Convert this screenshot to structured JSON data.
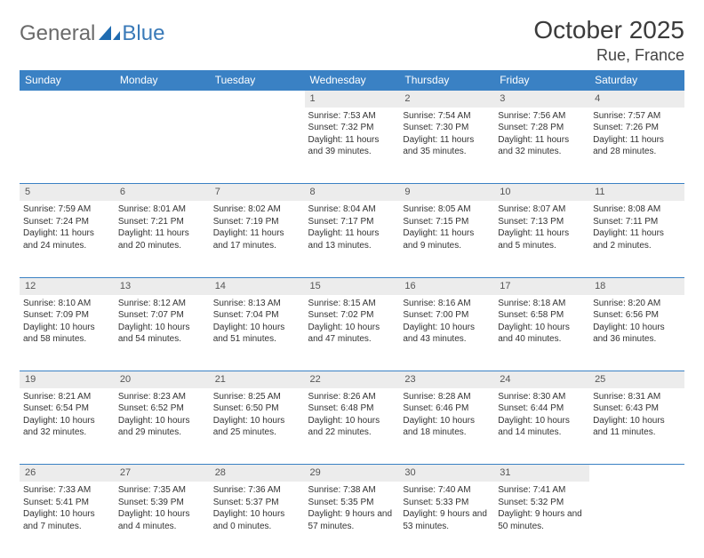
{
  "logo": {
    "general": "General",
    "blue": "Blue",
    "shape_color": "#1f6bb0"
  },
  "title": {
    "month": "October 2025",
    "location": "Rue, France"
  },
  "colors": {
    "header_bg": "#3a81c4",
    "header_text": "#ffffff",
    "daynum_bg": "#ececec",
    "border": "#3a81c4",
    "text": "#333333"
  },
  "weekdays": [
    "Sunday",
    "Monday",
    "Tuesday",
    "Wednesday",
    "Thursday",
    "Friday",
    "Saturday"
  ],
  "weeks": [
    {
      "nums": [
        "",
        "",
        "",
        "1",
        "2",
        "3",
        "4"
      ],
      "cells": [
        null,
        null,
        null,
        {
          "sunrise": "7:53 AM",
          "sunset": "7:32 PM",
          "daylight": "11 hours and 39 minutes."
        },
        {
          "sunrise": "7:54 AM",
          "sunset": "7:30 PM",
          "daylight": "11 hours and 35 minutes."
        },
        {
          "sunrise": "7:56 AM",
          "sunset": "7:28 PM",
          "daylight": "11 hours and 32 minutes."
        },
        {
          "sunrise": "7:57 AM",
          "sunset": "7:26 PM",
          "daylight": "11 hours and 28 minutes."
        }
      ]
    },
    {
      "nums": [
        "5",
        "6",
        "7",
        "8",
        "9",
        "10",
        "11"
      ],
      "cells": [
        {
          "sunrise": "7:59 AM",
          "sunset": "7:24 PM",
          "daylight": "11 hours and 24 minutes."
        },
        {
          "sunrise": "8:01 AM",
          "sunset": "7:21 PM",
          "daylight": "11 hours and 20 minutes."
        },
        {
          "sunrise": "8:02 AM",
          "sunset": "7:19 PM",
          "daylight": "11 hours and 17 minutes."
        },
        {
          "sunrise": "8:04 AM",
          "sunset": "7:17 PM",
          "daylight": "11 hours and 13 minutes."
        },
        {
          "sunrise": "8:05 AM",
          "sunset": "7:15 PM",
          "daylight": "11 hours and 9 minutes."
        },
        {
          "sunrise": "8:07 AM",
          "sunset": "7:13 PM",
          "daylight": "11 hours and 5 minutes."
        },
        {
          "sunrise": "8:08 AM",
          "sunset": "7:11 PM",
          "daylight": "11 hours and 2 minutes."
        }
      ]
    },
    {
      "nums": [
        "12",
        "13",
        "14",
        "15",
        "16",
        "17",
        "18"
      ],
      "cells": [
        {
          "sunrise": "8:10 AM",
          "sunset": "7:09 PM",
          "daylight": "10 hours and 58 minutes."
        },
        {
          "sunrise": "8:12 AM",
          "sunset": "7:07 PM",
          "daylight": "10 hours and 54 minutes."
        },
        {
          "sunrise": "8:13 AM",
          "sunset": "7:04 PM",
          "daylight": "10 hours and 51 minutes."
        },
        {
          "sunrise": "8:15 AM",
          "sunset": "7:02 PM",
          "daylight": "10 hours and 47 minutes."
        },
        {
          "sunrise": "8:16 AM",
          "sunset": "7:00 PM",
          "daylight": "10 hours and 43 minutes."
        },
        {
          "sunrise": "8:18 AM",
          "sunset": "6:58 PM",
          "daylight": "10 hours and 40 minutes."
        },
        {
          "sunrise": "8:20 AM",
          "sunset": "6:56 PM",
          "daylight": "10 hours and 36 minutes."
        }
      ]
    },
    {
      "nums": [
        "19",
        "20",
        "21",
        "22",
        "23",
        "24",
        "25"
      ],
      "cells": [
        {
          "sunrise": "8:21 AM",
          "sunset": "6:54 PM",
          "daylight": "10 hours and 32 minutes."
        },
        {
          "sunrise": "8:23 AM",
          "sunset": "6:52 PM",
          "daylight": "10 hours and 29 minutes."
        },
        {
          "sunrise": "8:25 AM",
          "sunset": "6:50 PM",
          "daylight": "10 hours and 25 minutes."
        },
        {
          "sunrise": "8:26 AM",
          "sunset": "6:48 PM",
          "daylight": "10 hours and 22 minutes."
        },
        {
          "sunrise": "8:28 AM",
          "sunset": "6:46 PM",
          "daylight": "10 hours and 18 minutes."
        },
        {
          "sunrise": "8:30 AM",
          "sunset": "6:44 PM",
          "daylight": "10 hours and 14 minutes."
        },
        {
          "sunrise": "8:31 AM",
          "sunset": "6:43 PM",
          "daylight": "10 hours and 11 minutes."
        }
      ]
    },
    {
      "nums": [
        "26",
        "27",
        "28",
        "29",
        "30",
        "31",
        ""
      ],
      "cells": [
        {
          "sunrise": "7:33 AM",
          "sunset": "5:41 PM",
          "daylight": "10 hours and 7 minutes."
        },
        {
          "sunrise": "7:35 AM",
          "sunset": "5:39 PM",
          "daylight": "10 hours and 4 minutes."
        },
        {
          "sunrise": "7:36 AM",
          "sunset": "5:37 PM",
          "daylight": "10 hours and 0 minutes."
        },
        {
          "sunrise": "7:38 AM",
          "sunset": "5:35 PM",
          "daylight": "9 hours and 57 minutes."
        },
        {
          "sunrise": "7:40 AM",
          "sunset": "5:33 PM",
          "daylight": "9 hours and 53 minutes."
        },
        {
          "sunrise": "7:41 AM",
          "sunset": "5:32 PM",
          "daylight": "9 hours and 50 minutes."
        },
        null
      ]
    }
  ],
  "labels": {
    "sunrise": "Sunrise: ",
    "sunset": "Sunset: ",
    "daylight": "Daylight: "
  }
}
